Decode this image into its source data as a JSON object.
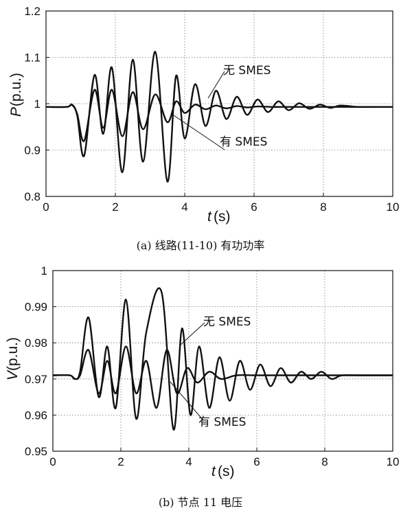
{
  "chart_data": [
    {
      "type": "line",
      "caption": "(a)  线路(11-10)  有功功率",
      "xlabel_sym": "t",
      "xlabel_unit": "(s)",
      "ylabel_sym": "P",
      "ylabel_unit": "(p.u.)",
      "xlim": [
        0,
        10
      ],
      "ylim": [
        0.8,
        1.2
      ],
      "xticks": [
        "0",
        "2",
        "4",
        "6",
        "8",
        "10"
      ],
      "yticks": [
        "0.8",
        "0.9",
        "1",
        "1.1",
        "1.2"
      ],
      "grid": true,
      "annotations": [
        "无 SMES",
        "有 SMES"
      ],
      "series": [
        {
          "name": "无 SMES",
          "x": [
            0,
            0.6,
            0.75,
            0.9,
            1.1,
            1.4,
            1.65,
            1.9,
            2.2,
            2.5,
            2.8,
            3.15,
            3.5,
            3.75,
            4.0,
            4.3,
            4.6,
            4.9,
            5.2,
            5.5,
            5.8,
            6.1,
            6.4,
            6.7,
            7.0,
            7.3,
            7.6,
            7.9,
            8.2,
            8.5,
            9.0,
            9.5,
            10
          ],
          "y": [
            0.993,
            0.993,
            0.998,
            0.975,
            0.888,
            1.062,
            0.935,
            1.078,
            0.852,
            1.095,
            0.875,
            1.112,
            0.832,
            1.06,
            0.925,
            1.042,
            0.952,
            1.028,
            0.967,
            1.015,
            0.976,
            1.009,
            0.982,
            1.005,
            0.986,
            1.001,
            0.989,
            0.998,
            0.991,
            0.996,
            0.993,
            0.993,
            0.993
          ]
        },
        {
          "name": "有 SMES",
          "x": [
            0,
            0.6,
            0.75,
            0.9,
            1.1,
            1.4,
            1.65,
            1.9,
            2.2,
            2.5,
            2.8,
            3.15,
            3.5,
            3.75,
            4.0,
            4.3,
            4.6,
            4.9,
            5.2,
            5.5,
            5.8,
            6.1,
            6.5,
            7.0,
            8.0,
            10
          ],
          "y": [
            0.993,
            0.993,
            0.997,
            0.978,
            0.92,
            1.03,
            0.948,
            1.03,
            0.93,
            1.025,
            0.945,
            1.02,
            0.96,
            1.005,
            0.98,
            0.998,
            0.988,
            0.996,
            0.99,
            0.995,
            0.992,
            0.994,
            0.993,
            0.993,
            0.993,
            0.993
          ]
        }
      ]
    },
    {
      "type": "line",
      "caption": "(b)  节点 11 电压",
      "xlabel_sym": "t",
      "xlabel_unit": "(s)",
      "ylabel_sym": "V",
      "ylabel_unit": "(p.u.)",
      "xlim": [
        0,
        10
      ],
      "ylim": [
        0.95,
        1.0
      ],
      "xticks": [
        "0",
        "2",
        "4",
        "6",
        "8",
        "10"
      ],
      "yticks": [
        "0.95",
        "0.96",
        "0.97",
        "0.98",
        "0.99",
        "1"
      ],
      "grid": true,
      "annotations": [
        "无 SMES",
        "有 SMES"
      ],
      "series": [
        {
          "name": "无 SMES",
          "x": [
            0,
            0.5,
            0.65,
            0.8,
            1.05,
            1.35,
            1.6,
            1.85,
            2.15,
            2.45,
            2.75,
            3.2,
            3.55,
            3.8,
            4.05,
            4.3,
            4.6,
            4.9,
            5.2,
            5.5,
            5.8,
            6.1,
            6.4,
            6.7,
            7.0,
            7.3,
            7.6,
            7.9,
            8.2,
            8.5,
            9.0,
            9.5,
            10
          ],
          "y": [
            0.971,
            0.971,
            0.97,
            0.972,
            0.987,
            0.965,
            0.979,
            0.962,
            0.992,
            0.959,
            0.983,
            0.994,
            0.956,
            0.984,
            0.96,
            0.979,
            0.962,
            0.976,
            0.964,
            0.975,
            0.967,
            0.974,
            0.968,
            0.973,
            0.969,
            0.972,
            0.97,
            0.972,
            0.97,
            0.971,
            0.971,
            0.971,
            0.971
          ]
        },
        {
          "name": "有 SMES",
          "x": [
            0,
            0.5,
            0.65,
            0.8,
            1.05,
            1.35,
            1.6,
            1.85,
            2.15,
            2.45,
            2.75,
            3.05,
            3.35,
            3.65,
            3.95,
            4.25,
            4.6,
            4.95,
            5.4,
            6.0,
            7.0,
            10
          ],
          "y": [
            0.971,
            0.971,
            0.97,
            0.971,
            0.978,
            0.966,
            0.975,
            0.966,
            0.979,
            0.966,
            0.975,
            0.962,
            0.978,
            0.966,
            0.973,
            0.969,
            0.972,
            0.97,
            0.971,
            0.971,
            0.971,
            0.971
          ]
        }
      ]
    }
  ]
}
